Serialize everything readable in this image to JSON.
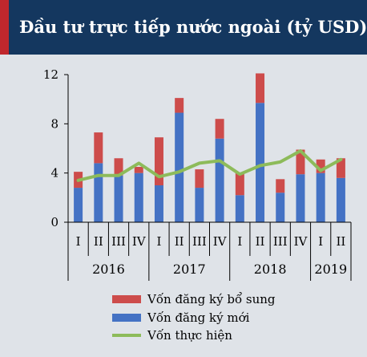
{
  "header": {
    "title": "Đầu tư trực tiếp nước ngoài (tỷ USD)"
  },
  "colors": {
    "header_bg": "#14375f",
    "accent": "#c0272d",
    "new_capital": "#4472c4",
    "additional_capital": "#cd4c4b",
    "disbursed": "#8dbb5a"
  },
  "chart_data": {
    "type": "bar",
    "stacked": true,
    "categories": [
      "I",
      "II",
      "III",
      "IV",
      "I",
      "II",
      "III",
      "IV",
      "I",
      "II",
      "III",
      "IV",
      "I",
      "II"
    ],
    "groups": [
      {
        "label": "2016",
        "count": 4
      },
      {
        "label": "2017",
        "count": 4
      },
      {
        "label": "2018",
        "count": 4
      },
      {
        "label": "2019",
        "count": 2
      }
    ],
    "series": [
      {
        "name": "Vốn đăng ký mới",
        "kind": "bar",
        "color": "#4472c4",
        "values": [
          2.8,
          4.8,
          3.8,
          4.0,
          3.0,
          8.9,
          2.8,
          6.8,
          2.2,
          9.7,
          2.4,
          3.9,
          4.0,
          3.6
        ]
      },
      {
        "name": "Vốn đăng ký bổ sung",
        "kind": "bar",
        "color": "#cd4c4b",
        "values": [
          1.3,
          2.5,
          1.4,
          0.5,
          3.9,
          1.2,
          1.5,
          1.6,
          1.8,
          2.4,
          1.1,
          2.0,
          1.1,
          1.6
        ]
      },
      {
        "name": "Vốn thực hiện",
        "kind": "line",
        "color": "#8dbb5a",
        "values": [
          3.4,
          3.8,
          3.8,
          4.8,
          3.7,
          4.1,
          4.8,
          5.0,
          3.9,
          4.6,
          4.9,
          5.8,
          4.2,
          5.1
        ]
      }
    ],
    "yticks": [
      0,
      4,
      8,
      12
    ],
    "ylim": [
      0,
      12
    ],
    "legend_order": [
      "Vốn đăng ký bổ sung",
      "Vốn đăng ký mới",
      "Vốn thực hiện"
    ],
    "legend_position": "bottom"
  }
}
